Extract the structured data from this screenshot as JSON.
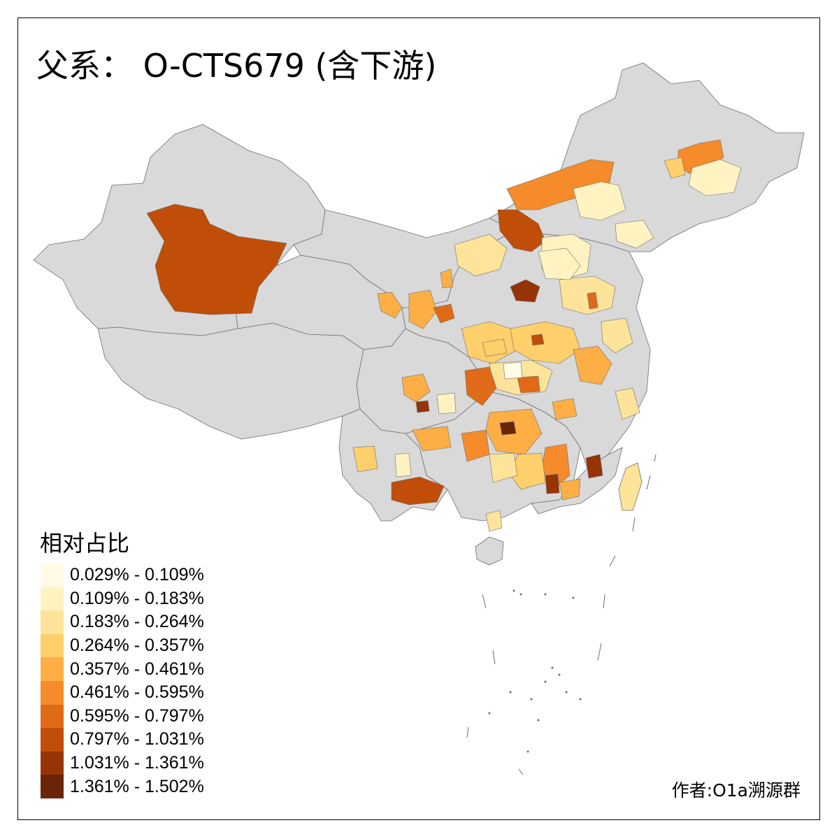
{
  "title": "父系： O-CTS679 (含下游)",
  "legend": {
    "title": "相对占比",
    "items": [
      {
        "label": "0.029% - 0.109%",
        "color": "#fffbe6"
      },
      {
        "label": "0.109% - 0.183%",
        "color": "#fff3c2"
      },
      {
        "label": "0.183% - 0.264%",
        "color": "#fee49a"
      },
      {
        "label": "0.264% - 0.357%",
        "color": "#fecf6a"
      },
      {
        "label": "0.357% - 0.461%",
        "color": "#fdaf45"
      },
      {
        "label": "0.461% - 0.595%",
        "color": "#f58b2a"
      },
      {
        "label": "0.595% - 0.797%",
        "color": "#e06a17"
      },
      {
        "label": "0.797% - 1.031%",
        "color": "#c04d08"
      },
      {
        "label": "1.031% - 1.361%",
        "color": "#963406"
      },
      {
        "label": "1.361% - 1.502%",
        "color": "#6a2508"
      }
    ]
  },
  "credit": "作者:O1a溯源群",
  "colors": {
    "no_data": "#d9d9d9",
    "boundary": "#6e6e6e"
  }
}
